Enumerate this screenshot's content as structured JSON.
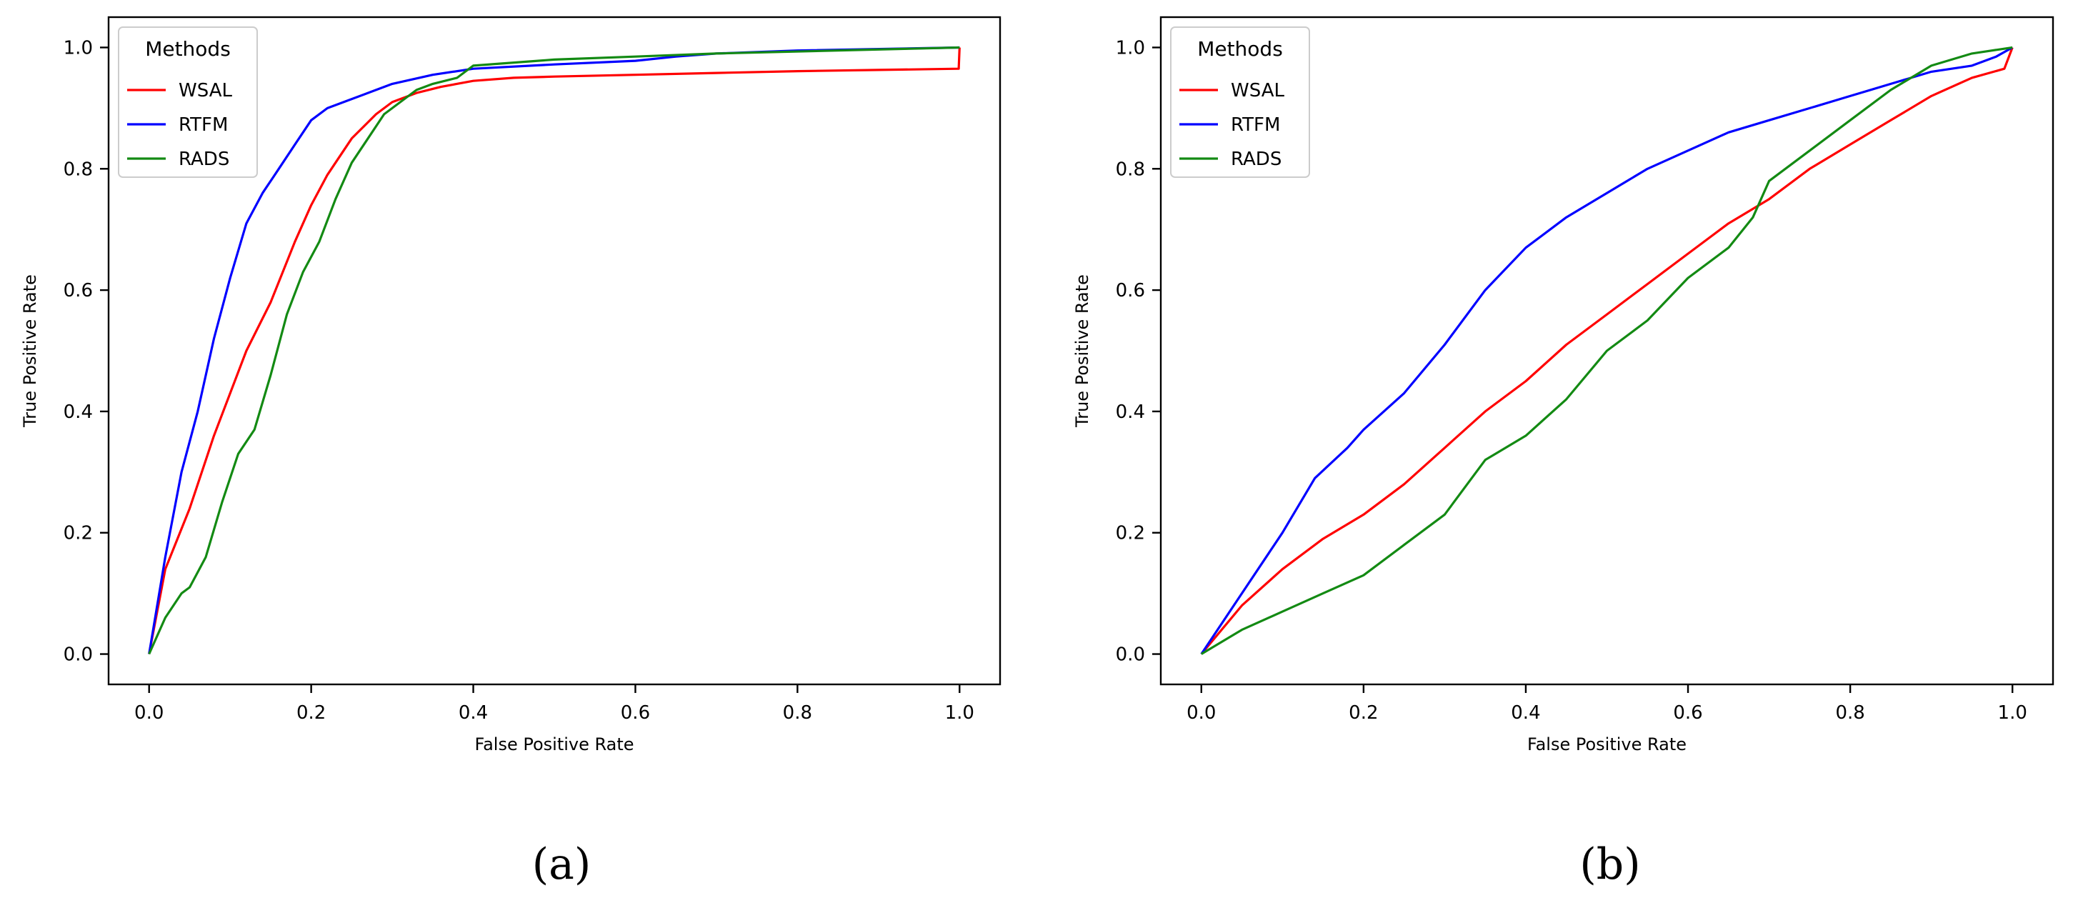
{
  "chart_data": [
    {
      "type": "line",
      "caption": "(a)",
      "xlabel": "False Positive Rate",
      "ylabel": "True Positive Rate",
      "xlim": [
        -0.05,
        1.05
      ],
      "ylim": [
        -0.05,
        1.05
      ],
      "xticks": [
        "0.0",
        "0.2",
        "0.4",
        "0.6",
        "0.8",
        "1.0"
      ],
      "yticks": [
        "0.0",
        "0.2",
        "0.4",
        "0.6",
        "0.8",
        "1.0"
      ],
      "legend": {
        "title": "Methods",
        "placement": "top-left"
      },
      "series": [
        {
          "name": "WSAL",
          "color": "#ff0000",
          "x": [
            0,
            0.02,
            0.05,
            0.08,
            0.1,
            0.12,
            0.15,
            0.18,
            0.2,
            0.22,
            0.25,
            0.28,
            0.3,
            0.33,
            0.36,
            0.4,
            0.45,
            0.5,
            0.6,
            0.7,
            0.8,
            0.9,
            0.999,
            1.0
          ],
          "y": [
            0,
            0.14,
            0.24,
            0.36,
            0.43,
            0.5,
            0.58,
            0.68,
            0.74,
            0.79,
            0.85,
            0.89,
            0.91,
            0.925,
            0.935,
            0.945,
            0.95,
            0.952,
            0.955,
            0.958,
            0.961,
            0.963,
            0.965,
            1.0
          ]
        },
        {
          "name": "RTFM",
          "color": "#0000ff",
          "x": [
            0,
            0.02,
            0.04,
            0.06,
            0.08,
            0.1,
            0.12,
            0.14,
            0.16,
            0.18,
            0.2,
            0.22,
            0.25,
            0.28,
            0.3,
            0.35,
            0.4,
            0.5,
            0.6,
            0.65,
            0.7,
            0.8,
            1.0
          ],
          "y": [
            0,
            0.16,
            0.3,
            0.4,
            0.52,
            0.62,
            0.71,
            0.76,
            0.8,
            0.84,
            0.88,
            0.9,
            0.915,
            0.93,
            0.94,
            0.955,
            0.965,
            0.972,
            0.978,
            0.985,
            0.99,
            0.995,
            1.0
          ]
        },
        {
          "name": "RADS",
          "color": "#138a13",
          "x": [
            0,
            0.02,
            0.04,
            0.05,
            0.07,
            0.09,
            0.11,
            0.13,
            0.15,
            0.17,
            0.19,
            0.21,
            0.23,
            0.25,
            0.27,
            0.29,
            0.31,
            0.33,
            0.35,
            0.38,
            0.4,
            0.5,
            0.6,
            0.7,
            1.0
          ],
          "y": [
            0,
            0.06,
            0.1,
            0.11,
            0.16,
            0.25,
            0.33,
            0.37,
            0.46,
            0.56,
            0.63,
            0.68,
            0.75,
            0.81,
            0.85,
            0.89,
            0.91,
            0.93,
            0.94,
            0.95,
            0.97,
            0.98,
            0.985,
            0.99,
            1.0
          ]
        }
      ]
    },
    {
      "type": "line",
      "caption": "(b)",
      "xlabel": "False Positive Rate",
      "ylabel": "True Positive Rate",
      "xlim": [
        -0.05,
        1.05
      ],
      "ylim": [
        -0.05,
        1.05
      ],
      "xticks": [
        "0.0",
        "0.2",
        "0.4",
        "0.6",
        "0.8",
        "1.0"
      ],
      "yticks": [
        "0.0",
        "0.2",
        "0.4",
        "0.6",
        "0.8",
        "1.0"
      ],
      "legend": {
        "title": "Methods",
        "placement": "top-left"
      },
      "series": [
        {
          "name": "WSAL",
          "color": "#ff0000",
          "x": [
            0,
            0.05,
            0.1,
            0.15,
            0.2,
            0.25,
            0.3,
            0.35,
            0.4,
            0.45,
            0.5,
            0.55,
            0.6,
            0.65,
            0.7,
            0.75,
            0.8,
            0.85,
            0.9,
            0.95,
            0.99,
            1.0
          ],
          "y": [
            0,
            0.08,
            0.14,
            0.19,
            0.23,
            0.28,
            0.34,
            0.4,
            0.45,
            0.51,
            0.56,
            0.61,
            0.66,
            0.71,
            0.75,
            0.8,
            0.84,
            0.88,
            0.92,
            0.95,
            0.965,
            1.0
          ]
        },
        {
          "name": "RTFM",
          "color": "#0000ff",
          "x": [
            0,
            0.05,
            0.1,
            0.14,
            0.18,
            0.2,
            0.25,
            0.3,
            0.35,
            0.4,
            0.45,
            0.5,
            0.55,
            0.6,
            0.65,
            0.7,
            0.75,
            0.8,
            0.85,
            0.9,
            0.95,
            0.98,
            1.0
          ],
          "y": [
            0,
            0.1,
            0.2,
            0.29,
            0.34,
            0.37,
            0.43,
            0.51,
            0.6,
            0.67,
            0.72,
            0.76,
            0.8,
            0.83,
            0.86,
            0.88,
            0.9,
            0.92,
            0.94,
            0.96,
            0.97,
            0.985,
            1.0
          ]
        },
        {
          "name": "RADS",
          "color": "#138a13",
          "x": [
            0,
            0.05,
            0.1,
            0.15,
            0.2,
            0.25,
            0.3,
            0.35,
            0.4,
            0.45,
            0.5,
            0.55,
            0.6,
            0.65,
            0.68,
            0.7,
            0.75,
            0.8,
            0.85,
            0.9,
            0.95,
            1.0
          ],
          "y": [
            0,
            0.04,
            0.07,
            0.1,
            0.13,
            0.18,
            0.23,
            0.32,
            0.36,
            0.42,
            0.5,
            0.55,
            0.62,
            0.67,
            0.72,
            0.78,
            0.83,
            0.88,
            0.93,
            0.97,
            0.99,
            1.0
          ]
        }
      ]
    }
  ]
}
